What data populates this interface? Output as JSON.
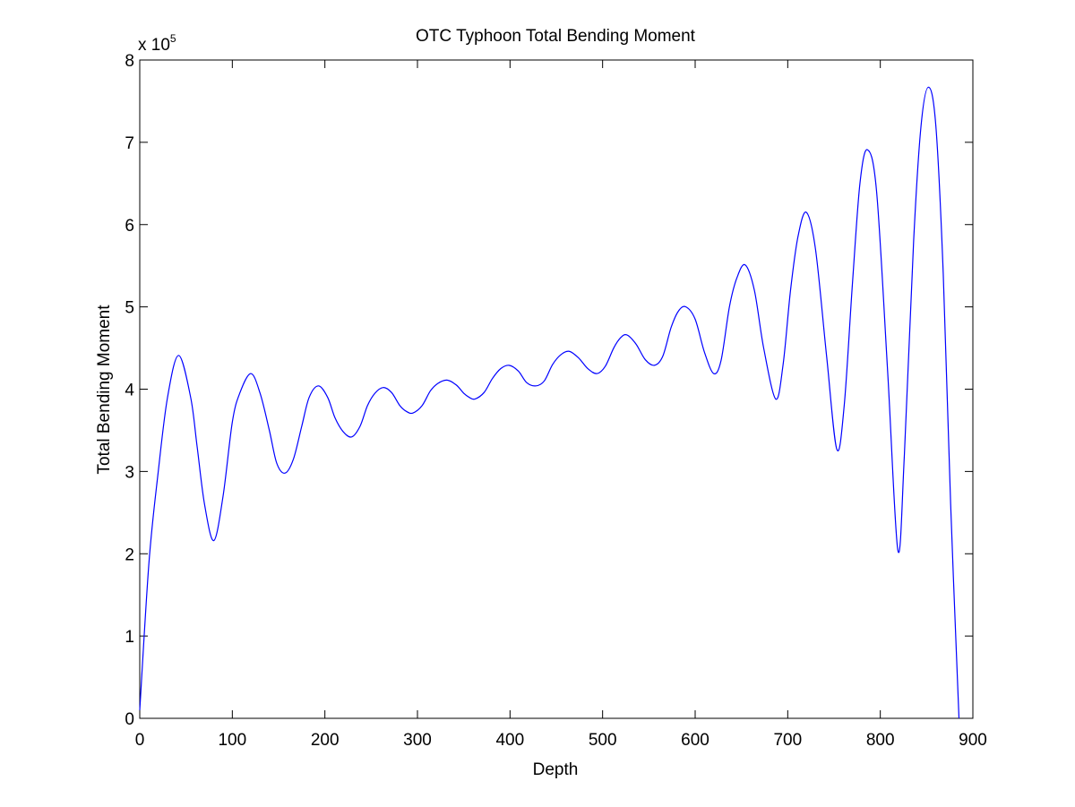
{
  "chart_data": {
    "type": "line",
    "title": "OTC Typhoon Total Bending Moment",
    "x_label": "Depth",
    "y_label": "Total Bending Moment",
    "y_multiplier": {
      "base": "x 10",
      "exponent": "5"
    },
    "xlim": [
      0,
      900
    ],
    "xticks": [
      0,
      100,
      200,
      300,
      400,
      500,
      600,
      700,
      800,
      900
    ],
    "ylim": [
      0,
      8
    ],
    "yticks": [
      0,
      1,
      2,
      3,
      4,
      5,
      6,
      7,
      8
    ],
    "grid": false,
    "series": [
      {
        "color": "#0000ff",
        "x": [
          0,
          10,
          20,
          30,
          42,
          55,
          62,
          70,
          80,
          90,
          100,
          108,
          120,
          130,
          140,
          148,
          157,
          166,
          175,
          183,
          193,
          203,
          211,
          220,
          229,
          238,
          246,
          254,
          263,
          272,
          281,
          288,
          295,
          305,
          314,
          322,
          332,
          342,
          350,
          356,
          362,
          372,
          381,
          390,
          399,
          409,
          418,
          428,
          437,
          446,
          455,
          464,
          474,
          484,
          494,
          503,
          512,
          519,
          526,
          536,
          546,
          556,
          565,
          574,
          582,
          590,
          600,
          610,
          620,
          628,
          637,
          645,
          654,
          664,
          674,
          687,
          695,
          703,
          711,
          720,
          730,
          742,
          753,
          761,
          770,
          778,
          786,
          796,
          808,
          819,
          826,
          836,
          844,
          852,
          860,
          868,
          876,
          885
        ],
        "values": [
          0.1,
          1.9,
          3.0,
          3.9,
          4.41,
          3.9,
          3.3,
          2.6,
          2.16,
          2.7,
          3.6,
          3.95,
          4.19,
          3.95,
          3.5,
          3.1,
          2.98,
          3.15,
          3.55,
          3.9,
          4.04,
          3.9,
          3.65,
          3.48,
          3.42,
          3.55,
          3.8,
          3.95,
          4.02,
          3.96,
          3.8,
          3.73,
          3.71,
          3.8,
          3.98,
          4.07,
          4.11,
          4.05,
          3.95,
          3.9,
          3.88,
          3.96,
          4.13,
          4.25,
          4.29,
          4.22,
          4.08,
          4.04,
          4.1,
          4.3,
          4.42,
          4.46,
          4.38,
          4.25,
          4.19,
          4.28,
          4.5,
          4.62,
          4.66,
          4.55,
          4.36,
          4.29,
          4.4,
          4.75,
          4.95,
          5.0,
          4.85,
          4.45,
          4.19,
          4.35,
          5.0,
          5.35,
          5.51,
          5.2,
          4.5,
          3.88,
          4.3,
          5.2,
          5.85,
          6.15,
          5.7,
          4.4,
          3.27,
          3.8,
          5.3,
          6.5,
          6.91,
          6.4,
          4.2,
          2.04,
          3.2,
          5.8,
          7.2,
          7.67,
          7.2,
          5.4,
          2.6,
          0
        ]
      }
    ]
  }
}
